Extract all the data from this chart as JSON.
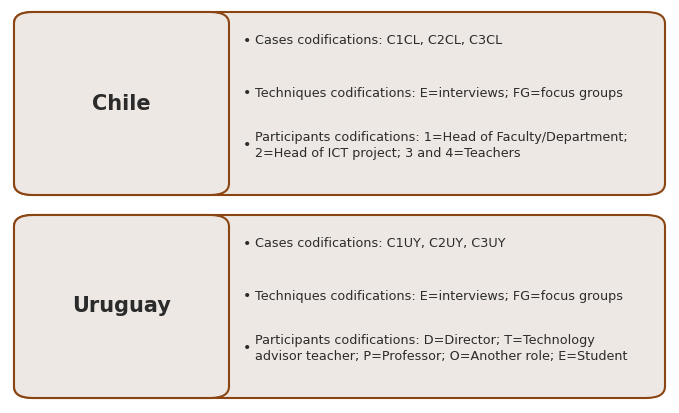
{
  "background_color": "#ffffff",
  "box_bg_color": "#ede8e3",
  "box_border_color": "#8B4513",
  "countries": [
    "Chile",
    "Uruguay"
  ],
  "chile_bullets": [
    "Cases codifications: C1CL, C2CL, C3CL",
    "Techniques codifications: E=interviews; FG=focus groups",
    "Participants codifications: 1=Head of Faculty/Department;\n2=Head of ICT project; 3 and 4=Teachers"
  ],
  "uruguay_bullets": [
    "Cases codifications: C1UY, C2UY, C3UY",
    "Techniques codifications: E=interviews; FG=focus groups",
    "Participants codifications: D=Director; T=Technology\nadvisor teacher; P=Professor; O=Another role; E=Student"
  ],
  "country_fontsize": 15,
  "bullet_fontsize": 9.2,
  "text_color": "#2b2b2b",
  "country_text_color": "#2b2b2b",
  "fig_width": 6.79,
  "fig_height": 4.13,
  "dpi": 100
}
